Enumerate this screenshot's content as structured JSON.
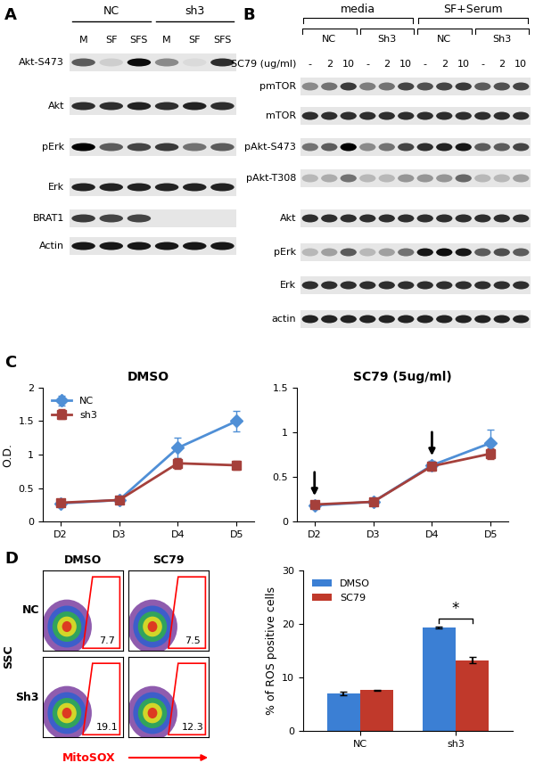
{
  "panel_labels": [
    "A",
    "B",
    "C",
    "D"
  ],
  "blot_A": {
    "groups": [
      {
        "name": "NC",
        "lanes": [
          "M",
          "SF",
          "SFS"
        ]
      },
      {
        "name": "sh3",
        "lanes": [
          "M",
          "SF",
          "SFS"
        ]
      }
    ],
    "rows": [
      {
        "name": "Akt-S473",
        "bands": [
          0.6,
          0.1,
          0.95,
          0.4,
          0.05,
          0.8
        ]
      },
      {
        "name": "Akt",
        "bands": [
          0.8,
          0.8,
          0.85,
          0.8,
          0.85,
          0.8
        ]
      },
      {
        "name": "pErk",
        "bands": [
          1.0,
          0.6,
          0.7,
          0.75,
          0.5,
          0.6
        ]
      },
      {
        "name": "Erk",
        "bands": [
          0.85,
          0.85,
          0.85,
          0.85,
          0.85,
          0.85
        ]
      },
      {
        "name": "BRAT1",
        "bands": [
          0.75,
          0.7,
          0.7,
          0.0,
          0.0,
          0.0
        ]
      },
      {
        "name": "Actin",
        "bands": [
          0.9,
          0.9,
          0.9,
          0.9,
          0.9,
          0.9
        ]
      }
    ]
  },
  "blot_B": {
    "conditions": [
      {
        "name": "media",
        "groups": [
          "NC",
          "Sh3"
        ]
      },
      {
        "name": "SF+Serum",
        "groups": [
          "NC",
          "Sh3"
        ]
      }
    ],
    "dose_label": "SC79 (ug/ml)",
    "doses": [
      "-",
      "2",
      "10"
    ],
    "rows": [
      {
        "name": "pmTOR",
        "bands": [
          0.4,
          0.5,
          0.75,
          0.45,
          0.5,
          0.7,
          0.65,
          0.7,
          0.75,
          0.6,
          0.65,
          0.7
        ]
      },
      {
        "name": "mTOR",
        "bands": [
          0.8,
          0.8,
          0.8,
          0.8,
          0.8,
          0.8,
          0.8,
          0.8,
          0.8,
          0.8,
          0.8,
          0.8
        ]
      },
      {
        "name": "pAkt-S473",
        "bands": [
          0.5,
          0.6,
          1.0,
          0.4,
          0.5,
          0.7,
          0.8,
          0.85,
          0.9,
          0.6,
          0.6,
          0.7
        ]
      },
      {
        "name": "pAkt-T308",
        "bands": [
          0.2,
          0.25,
          0.5,
          0.2,
          0.2,
          0.35,
          0.35,
          0.35,
          0.55,
          0.2,
          0.2,
          0.3
        ]
      },
      {
        "name": "Akt",
        "bands": [
          0.8,
          0.8,
          0.8,
          0.8,
          0.8,
          0.8,
          0.8,
          0.8,
          0.8,
          0.8,
          0.8,
          0.8
        ]
      },
      {
        "name": "pErk",
        "bands": [
          0.2,
          0.3,
          0.6,
          0.2,
          0.3,
          0.5,
          0.9,
          0.95,
          0.9,
          0.6,
          0.65,
          0.6
        ]
      },
      {
        "name": "Erk",
        "bands": [
          0.8,
          0.8,
          0.8,
          0.8,
          0.8,
          0.8,
          0.8,
          0.8,
          0.8,
          0.8,
          0.8,
          0.8
        ]
      },
      {
        "name": "actin",
        "bands": [
          0.85,
          0.85,
          0.85,
          0.85,
          0.85,
          0.85,
          0.85,
          0.85,
          0.85,
          0.85,
          0.85,
          0.85
        ]
      }
    ]
  },
  "chart_data": [
    {
      "type": "line",
      "title": "DMSO",
      "y_label": "O.D.",
      "categories": [
        "D2",
        "D3",
        "D4",
        "D5"
      ],
      "ylim": [
        0,
        2
      ],
      "yticks": [
        0,
        0.5,
        1,
        1.5,
        2
      ],
      "legend": "upper left",
      "series": [
        {
          "name": "NC",
          "color": "#4f8fd6",
          "marker": "diamond",
          "values": [
            0.27,
            0.32,
            1.1,
            1.5
          ],
          "errors": [
            0.02,
            0.02,
            0.15,
            0.15
          ]
        },
        {
          "name": "sh3",
          "color": "#a5403b",
          "marker": "square",
          "values": [
            0.28,
            0.32,
            0.87,
            0.84
          ],
          "errors": [
            0.02,
            0.02,
            0.08,
            0.07
          ]
        }
      ]
    },
    {
      "type": "line",
      "title": "SC79 (5ug/ml)",
      "categories": [
        "D2",
        "D3",
        "D4",
        "D5"
      ],
      "ylim": [
        0,
        1.5
      ],
      "yticks": [
        0,
        0.5,
        1,
        1.5
      ],
      "arrows": [
        "D2",
        "D4"
      ],
      "series": [
        {
          "color": "#4f8fd6",
          "marker": "diamond",
          "values": [
            0.18,
            0.22,
            0.63,
            0.88
          ],
          "errors": [
            0.02,
            0.02,
            0.05,
            0.15
          ]
        },
        {
          "color": "#a5403b",
          "marker": "square",
          "values": [
            0.19,
            0.22,
            0.62,
            0.76
          ],
          "errors": [
            0.02,
            0.02,
            0.05,
            0.06
          ]
        }
      ]
    },
    {
      "type": "bar",
      "y_label": "% of ROS positive cells",
      "categories": [
        "NC",
        "sh3"
      ],
      "ylim": [
        0,
        30
      ],
      "yticks": [
        0,
        10,
        20,
        30
      ],
      "legend": "upper left",
      "series": [
        {
          "name": "DMSO",
          "color": "#3b7fd4",
          "values": [
            7.0,
            19.3
          ],
          "errors": [
            0.4,
            0.2
          ]
        },
        {
          "name": "SC79",
          "color": "#c0392b",
          "values": [
            7.6,
            13.2
          ],
          "errors": [
            0.1,
            0.6
          ]
        }
      ],
      "significance": [
        {
          "category": "sh3",
          "label": "*"
        }
      ]
    }
  ],
  "flow": {
    "columns": [
      "DMSO",
      "SC79"
    ],
    "rows": [
      "NC",
      "Sh3"
    ],
    "percent": [
      [
        7.7,
        7.5
      ],
      [
        19.1,
        12.3
      ]
    ],
    "y_label": "SSC",
    "x_label": "MitoSOX"
  }
}
